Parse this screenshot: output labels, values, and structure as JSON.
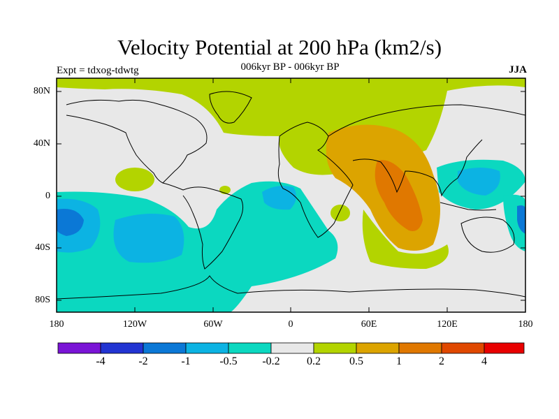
{
  "header": {
    "title": "Velocity Potential at 200 hPa (km2/s)",
    "subtitle": "006kyr BP - 006kyr BP",
    "experiment": "Expt = tdxog-tdwtg",
    "season": "JJA"
  },
  "map": {
    "projection": "cylindrical-equidistant",
    "lon_range": [
      -180,
      180
    ],
    "lat_range": [
      -90,
      90
    ],
    "lat_ticks": [
      "80N",
      "40N",
      "0",
      "40S",
      "80S"
    ],
    "lon_ticks": [
      "180",
      "120W",
      "60W",
      "0",
      "60E",
      "120E",
      "180"
    ],
    "background_color": "#e8e8e8",
    "coastline_color": "#000000",
    "features": [
      {
        "name": "arctic-positive-band",
        "class": "0.2 to 0.5"
      },
      {
        "name": "south-asia-maximum",
        "class": "1 to 2",
        "center": "India / Bay of Bengal"
      },
      {
        "name": "pacific-minimum",
        "class": "-1 to -0.5",
        "center": "Central Pacific"
      },
      {
        "name": "maritime-continent-minimum",
        "class": "-0.5 to -0.2",
        "center": "Philippines"
      }
    ]
  },
  "colorbar": {
    "colors": [
      "#7a14d6",
      "#2234d2",
      "#0b78d6",
      "#0cb3e3",
      "#0bd8c0",
      "#e8e8e8",
      "#b3d400",
      "#dca400",
      "#e07800",
      "#e04800",
      "#e80000"
    ],
    "labels": [
      "-4",
      "-2",
      "-1",
      "-0.5",
      "-0.2",
      "0.2",
      "0.5",
      "1",
      "2",
      "4"
    ]
  }
}
